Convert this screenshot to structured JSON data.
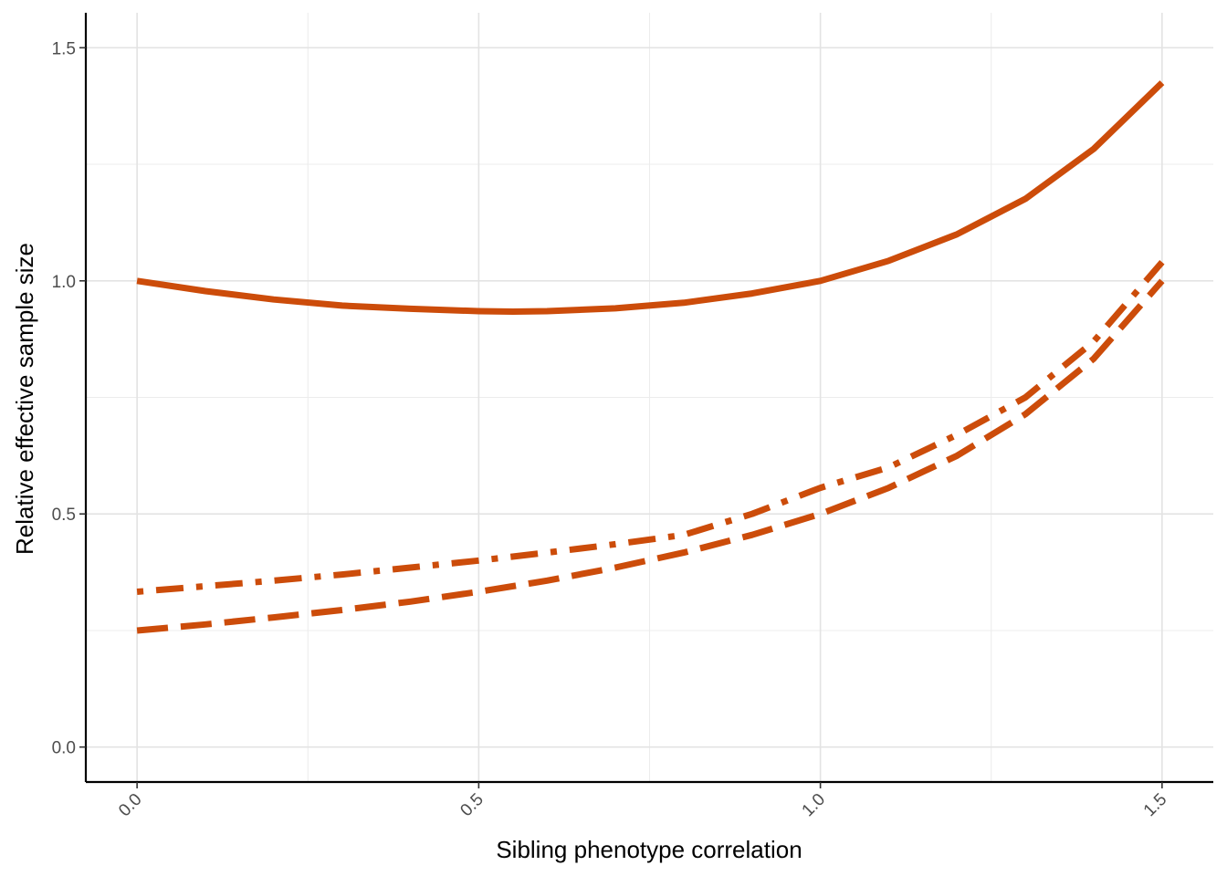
{
  "chart_data": {
    "type": "line",
    "title": "",
    "xlabel": "Sibling phenotype correlation",
    "ylabel": "Relative effective sample size",
    "xlim": [
      -0.075,
      1.575
    ],
    "ylim": [
      -0.075,
      1.575
    ],
    "x_ticks": [
      0.0,
      0.5,
      1.0,
      1.5
    ],
    "x_tick_labels": [
      "0.0",
      "0.5",
      "1.0",
      "1.5"
    ],
    "y_ticks": [
      0.0,
      0.5,
      1.0,
      1.5
    ],
    "y_tick_labels": [
      "0.0",
      "0.5",
      "1.0",
      "1.5"
    ],
    "x_minor": [
      0.25,
      0.75,
      1.25
    ],
    "y_minor": [
      0.25,
      0.75,
      1.25
    ],
    "grid": true,
    "legend": "none",
    "color": "#cc4c0a",
    "series": [
      {
        "linestyle": "solid",
        "x": [
          0.0,
          0.1,
          0.2,
          0.3,
          0.4,
          0.5,
          0.55,
          0.6,
          0.7,
          0.8,
          0.9,
          1.0,
          1.1,
          1.2,
          1.3,
          1.4,
          1.5
        ],
        "y": [
          1.0,
          0.978,
          0.96,
          0.947,
          0.94,
          0.935,
          0.934,
          0.935,
          0.941,
          0.953,
          0.973,
          1.0,
          1.043,
          1.1,
          1.176,
          1.283,
          1.425
        ]
      },
      {
        "linestyle": "longdash",
        "x": [
          0.0,
          0.1,
          0.2,
          0.3,
          0.4,
          0.5,
          0.6,
          0.7,
          0.8,
          0.9,
          1.0,
          1.1,
          1.2,
          1.3,
          1.4,
          1.5
        ],
        "y": [
          0.25,
          0.263,
          0.278,
          0.294,
          0.312,
          0.333,
          0.357,
          0.385,
          0.417,
          0.455,
          0.5,
          0.556,
          0.625,
          0.714,
          0.833,
          1.0
        ]
      },
      {
        "linestyle": "dotdash",
        "x": [
          0.0,
          0.1,
          0.2,
          0.3,
          0.4,
          0.5,
          0.6,
          0.7,
          0.8,
          0.9,
          1.0,
          1.1,
          1.2,
          1.3,
          1.4,
          1.5
        ],
        "y": [
          0.333,
          0.345,
          0.357,
          0.37,
          0.385,
          0.4,
          0.417,
          0.435,
          0.455,
          0.5,
          0.556,
          0.6,
          0.67,
          0.75,
          0.87,
          1.04
        ]
      }
    ]
  }
}
